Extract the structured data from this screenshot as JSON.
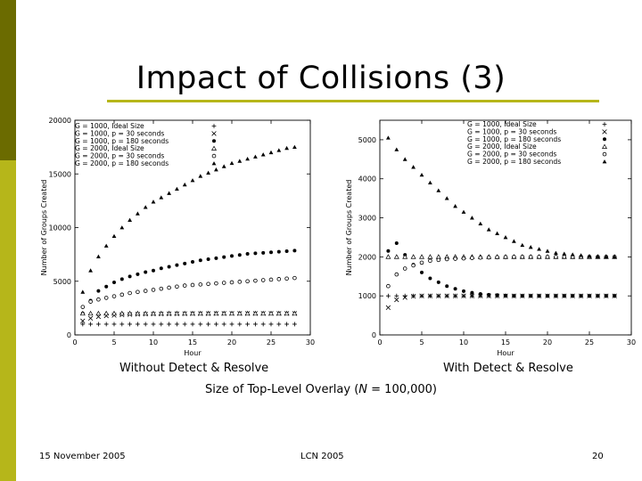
{
  "slide": {
    "title": "Impact of Collisions (3)",
    "caption_left": "Without Detect & Resolve",
    "caption_right": "With Detect & Resolve",
    "subtitle_prefix": "Size of Top-Level Overlay (",
    "subtitle_var": "N",
    "subtitle_suffix": " = 100,000)",
    "footer_date": "15 November 2005",
    "footer_venue": "LCN 2005",
    "footer_page": "20",
    "accent_dark": "#6b6b00",
    "accent_light": "#b6b61a"
  },
  "chart_data": [
    {
      "type": "scatter",
      "xlabel": "Hour",
      "ylabel": "Number of Groups Created",
      "xlim": [
        0,
        30
      ],
      "ylim": [
        0,
        20000
      ],
      "xticks": [
        0,
        5,
        10,
        15,
        20,
        25,
        30
      ],
      "yticks": [
        0,
        5000,
        10000,
        15000,
        20000
      ],
      "legend_position": "top-left",
      "series": [
        {
          "name": "G = 1000, Ideal Size",
          "marker": "+",
          "x": [
            1,
            2,
            3,
            4,
            5,
            6,
            7,
            8,
            9,
            10,
            11,
            12,
            13,
            14,
            15,
            16,
            17,
            18,
            19,
            20,
            21,
            22,
            23,
            24,
            25,
            26,
            27,
            28
          ],
          "values": [
            1000,
            1000,
            1000,
            1000,
            1000,
            1000,
            1000,
            1000,
            1000,
            1000,
            1000,
            1000,
            1000,
            1000,
            1000,
            1000,
            1000,
            1000,
            1000,
            1000,
            1000,
            1000,
            1000,
            1000,
            1000,
            1000,
            1000,
            1000
          ]
        },
        {
          "name": "G = 1000, p = 30 seconds",
          "marker": "x",
          "x": [
            1,
            2,
            3,
            4,
            5,
            6,
            7,
            8,
            9,
            10,
            11,
            12,
            13,
            14,
            15,
            16,
            17,
            18,
            19,
            20,
            21,
            22,
            23,
            24,
            25,
            26,
            27,
            28
          ],
          "values": [
            1300,
            1550,
            1700,
            1780,
            1830,
            1870,
            1900,
            1920,
            1940,
            1950,
            1960,
            1970,
            1975,
            1980,
            1985,
            1990,
            1990,
            1995,
            1995,
            2000,
            2000,
            2000,
            2000,
            2000,
            2000,
            2000,
            2000,
            2000
          ]
        },
        {
          "name": "G = 1000, p = 180 seconds",
          "marker": "filled-circle",
          "x": [
            1,
            2,
            3,
            4,
            5,
            6,
            7,
            8,
            9,
            10,
            11,
            12,
            13,
            14,
            15,
            16,
            17,
            18,
            19,
            20,
            21,
            22,
            23,
            24,
            25,
            26,
            27,
            28
          ],
          "values": [
            2000,
            3200,
            4100,
            4500,
            4900,
            5200,
            5450,
            5650,
            5850,
            6000,
            6200,
            6350,
            6500,
            6650,
            6800,
            6950,
            7050,
            7150,
            7250,
            7350,
            7450,
            7550,
            7600,
            7650,
            7700,
            7750,
            7800,
            7850
          ]
        },
        {
          "name": "G = 2000, Ideal Size",
          "marker": "triangle",
          "x": [
            1,
            2,
            3,
            4,
            5,
            6,
            7,
            8,
            9,
            10,
            11,
            12,
            13,
            14,
            15,
            16,
            17,
            18,
            19,
            20,
            21,
            22,
            23,
            24,
            25,
            26,
            27,
            28
          ],
          "values": [
            2000,
            2000,
            2000,
            2000,
            2000,
            2000,
            2000,
            2000,
            2000,
            2000,
            2000,
            2000,
            2000,
            2000,
            2000,
            2000,
            2000,
            2000,
            2000,
            2000,
            2000,
            2000,
            2000,
            2000,
            2000,
            2000,
            2000,
            2000
          ]
        },
        {
          "name": "G = 2000, p = 30 seconds",
          "marker": "open-circle",
          "x": [
            1,
            2,
            3,
            4,
            5,
            6,
            7,
            8,
            9,
            10,
            11,
            12,
            13,
            14,
            15,
            16,
            17,
            18,
            19,
            20,
            21,
            22,
            23,
            24,
            25,
            26,
            27,
            28
          ],
          "values": [
            2600,
            3100,
            3300,
            3450,
            3600,
            3750,
            3900,
            4000,
            4100,
            4200,
            4300,
            4400,
            4500,
            4600,
            4650,
            4700,
            4750,
            4800,
            4850,
            4900,
            4950,
            5000,
            5050,
            5100,
            5150,
            5200,
            5250,
            5300
          ]
        },
        {
          "name": "G = 2000, p = 180 seconds",
          "marker": "filled-triangle",
          "x": [
            1,
            2,
            3,
            4,
            5,
            6,
            7,
            8,
            9,
            10,
            11,
            12,
            13,
            14,
            15,
            16,
            17,
            18,
            19,
            20,
            21,
            22,
            23,
            24,
            25,
            26,
            27,
            28
          ],
          "values": [
            4000,
            6000,
            7300,
            8300,
            9200,
            10000,
            10700,
            11300,
            11900,
            12400,
            12800,
            13200,
            13600,
            14000,
            14400,
            14800,
            15100,
            15400,
            15700,
            16000,
            16200,
            16400,
            16600,
            16800,
            17000,
            17200,
            17400,
            17500
          ]
        }
      ]
    },
    {
      "type": "scatter",
      "xlabel": "Hour",
      "ylabel": "Number of Groups Created",
      "xlim": [
        0,
        30
      ],
      "ylim": [
        0,
        5500
      ],
      "xticks": [
        0,
        5,
        10,
        15,
        20,
        25,
        30
      ],
      "yticks": [
        0,
        1000,
        2000,
        3000,
        4000,
        5000
      ],
      "legend_position": "top-right",
      "series": [
        {
          "name": "G = 1000, Ideal Size",
          "marker": "+",
          "x": [
            1,
            2,
            3,
            4,
            5,
            6,
            7,
            8,
            9,
            10,
            11,
            12,
            13,
            14,
            15,
            16,
            17,
            18,
            19,
            20,
            21,
            22,
            23,
            24,
            25,
            26,
            27,
            28
          ],
          "values": [
            1000,
            1000,
            1000,
            1000,
            1000,
            1000,
            1000,
            1000,
            1000,
            1000,
            1000,
            1000,
            1000,
            1000,
            1000,
            1000,
            1000,
            1000,
            1000,
            1000,
            1000,
            1000,
            1000,
            1000,
            1000,
            1000,
            1000,
            1000
          ]
        },
        {
          "name": "G = 1000, p = 30 seconds",
          "marker": "x",
          "x": [
            1,
            2,
            3,
            4,
            5,
            6,
            7,
            8,
            9,
            10,
            11,
            12,
            13,
            14,
            15,
            16,
            17,
            18,
            19,
            20,
            21,
            22,
            23,
            24,
            25,
            26,
            27,
            28
          ],
          "values": [
            700,
            900,
            960,
            990,
            1000,
            1000,
            1000,
            1000,
            1000,
            1000,
            1000,
            1000,
            1000,
            1000,
            1000,
            1000,
            1000,
            1000,
            1000,
            1000,
            1000,
            1000,
            1000,
            1000,
            1000,
            1000,
            1000,
            1000
          ]
        },
        {
          "name": "G = 1000, p = 180 seconds",
          "marker": "filled-circle",
          "x": [
            1,
            2,
            3,
            4,
            5,
            6,
            7,
            8,
            9,
            10,
            11,
            12,
            13,
            14,
            15,
            16,
            17,
            18,
            19,
            20,
            21,
            22,
            23,
            24,
            25,
            26,
            27,
            28
          ],
          "values": [
            2150,
            2350,
            2050,
            1800,
            1600,
            1450,
            1350,
            1250,
            1180,
            1120,
            1080,
            1050,
            1030,
            1020,
            1010,
            1000,
            1000,
            1000,
            1000,
            1000,
            1000,
            1000,
            1000,
            1000,
            1000,
            1000,
            1000,
            1000
          ]
        },
        {
          "name": "G = 2000, Ideal Size",
          "marker": "triangle",
          "x": [
            1,
            2,
            3,
            4,
            5,
            6,
            7,
            8,
            9,
            10,
            11,
            12,
            13,
            14,
            15,
            16,
            17,
            18,
            19,
            20,
            21,
            22,
            23,
            24,
            25,
            26,
            27,
            28
          ],
          "values": [
            2000,
            2000,
            2000,
            2000,
            2000,
            2000,
            2000,
            2000,
            2000,
            2000,
            2000,
            2000,
            2000,
            2000,
            2000,
            2000,
            2000,
            2000,
            2000,
            2000,
            2000,
            2000,
            2000,
            2000,
            2000,
            2000,
            2000,
            2000
          ]
        },
        {
          "name": "G = 2000, p = 30 seconds",
          "marker": "open-circle",
          "x": [
            1,
            2,
            3,
            4,
            5,
            6,
            7,
            8,
            9,
            10,
            11,
            12,
            13,
            14,
            15,
            16,
            17,
            18,
            19,
            20,
            21,
            22,
            23,
            24,
            25,
            26,
            27,
            28
          ],
          "values": [
            1250,
            1550,
            1700,
            1780,
            1850,
            1900,
            1920,
            1940,
            1950,
            1960,
            1970,
            1980,
            1985,
            1990,
            1995,
            2000,
            2000,
            2000,
            2000,
            2000,
            2000,
            2000,
            2000,
            2000,
            2000,
            2000,
            2000,
            2000
          ]
        },
        {
          "name": "G = 2000, p = 180 seconds",
          "marker": "filled-triangle",
          "x": [
            1,
            2,
            3,
            4,
            5,
            6,
            7,
            8,
            9,
            10,
            11,
            12,
            13,
            14,
            15,
            16,
            17,
            18,
            19,
            20,
            21,
            22,
            23,
            24,
            25,
            26,
            27,
            28
          ],
          "values": [
            5050,
            4750,
            4500,
            4300,
            4100,
            3900,
            3700,
            3500,
            3300,
            3150,
            3000,
            2850,
            2700,
            2600,
            2500,
            2400,
            2300,
            2250,
            2200,
            2150,
            2100,
            2080,
            2060,
            2040,
            2020,
            2010,
            2005,
            2000
          ]
        }
      ]
    }
  ]
}
